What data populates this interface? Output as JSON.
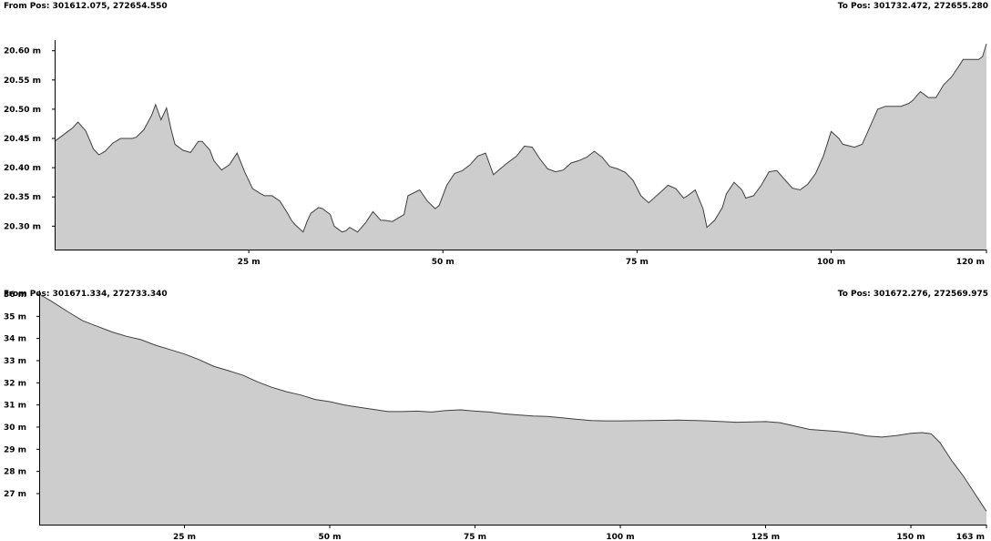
{
  "profiles": [
    {
      "from_pos": "From Pos: 301612.075, 272654.550",
      "to_pos": "To Pos: 301732.472, 272655.280"
    },
    {
      "from_pos": "From Pos: 301671.334, 272733.340",
      "to_pos": "To Pos: 301672.276, 272569.975"
    }
  ],
  "colors": {
    "fill": "#cdcdcd",
    "line": "#404040",
    "axis": "#000000"
  },
  "chart_data": [
    {
      "type": "area",
      "xlim": [
        0,
        120
      ],
      "ylim": [
        20.26,
        20.612
      ],
      "x_ticks": [
        {
          "value": 25,
          "label": "25 m"
        },
        {
          "value": 50,
          "label": "50 m"
        },
        {
          "value": 75,
          "label": "75 m"
        },
        {
          "value": 100,
          "label": "100 m"
        },
        {
          "value": 120,
          "label": "120 m"
        }
      ],
      "y_ticks": [
        {
          "value": 20.3,
          "label": "20.30 m"
        },
        {
          "value": 20.35,
          "label": "20.35 m"
        },
        {
          "value": 20.4,
          "label": "20.40 m"
        },
        {
          "value": 20.45,
          "label": "20.45 m"
        },
        {
          "value": 20.5,
          "label": "20.50 m"
        },
        {
          "value": 20.55,
          "label": "20.55 m"
        },
        {
          "value": 20.6,
          "label": "20.60 m"
        }
      ],
      "series": [
        {
          "x": [
            0,
            1,
            1.7,
            2.3,
            3,
            4,
            5,
            5.7,
            6.5,
            7.5,
            8.5,
            10,
            10.5,
            11.5,
            12.5,
            13,
            13.7,
            14.4,
            15,
            15.5,
            16.5,
            17,
            17.5,
            18.5,
            19,
            20,
            20.5,
            21.5,
            22.5,
            23.5,
            24.5,
            25,
            25.5,
            26.5,
            27,
            28,
            29,
            30,
            30.5,
            31,
            32,
            32.5,
            33,
            34,
            34.5,
            35.5,
            36,
            37,
            37.5,
            38,
            39,
            40,
            40.5,
            41,
            42,
            42.5,
            43.5,
            45,
            45.5,
            47,
            48,
            49,
            49.5,
            50.5,
            51.5,
            52.5,
            53.5,
            54.5,
            55.5,
            56.5,
            58,
            59.5,
            60.5,
            61.5,
            62.5,
            63.5,
            64.5,
            65.5,
            66.5,
            67.5,
            68.5,
            69.5,
            70.5,
            71.5,
            72.5,
            73.5,
            74.5,
            75.5,
            76.5,
            78,
            79,
            80,
            81,
            81.5,
            82.5,
            83.5,
            84,
            85,
            86,
            86.5,
            87.5,
            88.5,
            89,
            90,
            91,
            92,
            93,
            94,
            95,
            96,
            97,
            98,
            99,
            100,
            101,
            101.5,
            103,
            104,
            105,
            106,
            107,
            108,
            109,
            110,
            110.5,
            111.5,
            112.5,
            113.5,
            114.5,
            115.5,
            116.5,
            117,
            118.5,
            119,
            119.5,
            120
          ],
          "y": [
            20.445,
            20.455,
            20.462,
            20.468,
            20.478,
            20.463,
            20.432,
            20.422,
            20.428,
            20.442,
            20.45,
            20.45,
            20.452,
            20.465,
            20.49,
            20.508,
            20.482,
            20.502,
            20.465,
            20.44,
            20.43,
            20.428,
            20.426,
            20.445,
            20.445,
            20.43,
            20.412,
            20.396,
            20.405,
            20.425,
            20.392,
            20.378,
            20.364,
            20.356,
            20.352,
            20.352,
            20.343,
            20.322,
            20.31,
            20.302,
            20.29,
            20.308,
            20.322,
            20.332,
            20.33,
            20.32,
            20.3,
            20.29,
            20.292,
            20.298,
            20.29,
            20.305,
            20.315,
            20.325,
            20.31,
            20.31,
            20.308,
            20.32,
            20.352,
            20.362,
            20.343,
            20.33,
            20.335,
            20.37,
            20.39,
            20.395,
            20.405,
            20.42,
            20.425,
            20.388,
            20.405,
            20.42,
            20.437,
            20.435,
            20.415,
            20.398,
            20.393,
            20.396,
            20.408,
            20.412,
            20.418,
            20.428,
            20.418,
            20.402,
            20.398,
            20.392,
            20.378,
            20.352,
            20.34,
            20.358,
            20.37,
            20.364,
            20.348,
            20.352,
            20.362,
            20.33,
            20.298,
            20.31,
            20.332,
            20.355,
            20.375,
            20.362,
            20.348,
            20.352,
            20.37,
            20.393,
            20.395,
            20.38,
            20.365,
            20.362,
            20.372,
            20.39,
            20.42,
            20.462,
            20.45,
            20.44,
            20.435,
            20.44,
            20.47,
            20.5,
            20.505,
            20.505,
            20.505,
            20.51,
            20.515,
            20.53,
            20.52,
            20.52,
            20.542,
            20.555,
            20.575,
            20.585,
            20.585,
            20.585,
            20.59,
            20.612
          ]
        }
      ]
    },
    {
      "type": "area",
      "xlim": [
        0,
        163
      ],
      "ylim": [
        25.6,
        36
      ],
      "x_ticks": [
        {
          "value": 25,
          "label": "25 m"
        },
        {
          "value": 50,
          "label": "50 m"
        },
        {
          "value": 75,
          "label": "75 m"
        },
        {
          "value": 100,
          "label": "100 m"
        },
        {
          "value": 125,
          "label": "125 m"
        },
        {
          "value": 150,
          "label": "150 m"
        },
        {
          "value": 163,
          "label": "163 m"
        }
      ],
      "y_ticks": [
        {
          "value": 27,
          "label": "27 m"
        },
        {
          "value": 28,
          "label": "28 m"
        },
        {
          "value": 29,
          "label": "29 m"
        },
        {
          "value": 30,
          "label": "30 m"
        },
        {
          "value": 31,
          "label": "31 m"
        },
        {
          "value": 32,
          "label": "32 m"
        },
        {
          "value": 33,
          "label": "33 m"
        },
        {
          "value": 34,
          "label": "34 m"
        },
        {
          "value": 35,
          "label": "35 m"
        },
        {
          "value": 36,
          "label": "36 m"
        }
      ],
      "series": [
        {
          "x": [
            0,
            2,
            5,
            7.5,
            10,
            12.5,
            15,
            17.5,
            20,
            22.5,
            25,
            27.5,
            30,
            32.5,
            35,
            37.5,
            40,
            42.5,
            45,
            47.5,
            50,
            52.5,
            55,
            57.5,
            60,
            62.5,
            65,
            67.5,
            70,
            72.5,
            75,
            77.5,
            80,
            82.5,
            85,
            87.5,
            90,
            92.5,
            95,
            97.5,
            100,
            105,
            110,
            115,
            120,
            125,
            127.5,
            130,
            132.5,
            135,
            137.5,
            140,
            142.5,
            145,
            147.5,
            150,
            152,
            153.5,
            155,
            157,
            159,
            161,
            162,
            163
          ],
          "y": [
            36,
            35.7,
            35.2,
            34.8,
            34.55,
            34.3,
            34.1,
            33.95,
            33.7,
            33.5,
            33.3,
            33.05,
            32.75,
            32.55,
            32.35,
            32.05,
            31.8,
            31.6,
            31.45,
            31.25,
            31.15,
            31.0,
            30.9,
            30.8,
            30.7,
            30.7,
            30.72,
            30.68,
            30.75,
            30.78,
            30.72,
            30.68,
            30.6,
            30.55,
            30.5,
            30.48,
            30.42,
            30.35,
            30.3,
            30.28,
            30.28,
            30.3,
            30.32,
            30.28,
            30.22,
            30.25,
            30.2,
            30.05,
            29.9,
            29.85,
            29.8,
            29.72,
            29.6,
            29.55,
            29.62,
            29.72,
            29.75,
            29.7,
            29.3,
            28.5,
            27.8,
            27.0,
            26.6,
            26.2
          ]
        }
      ]
    }
  ]
}
